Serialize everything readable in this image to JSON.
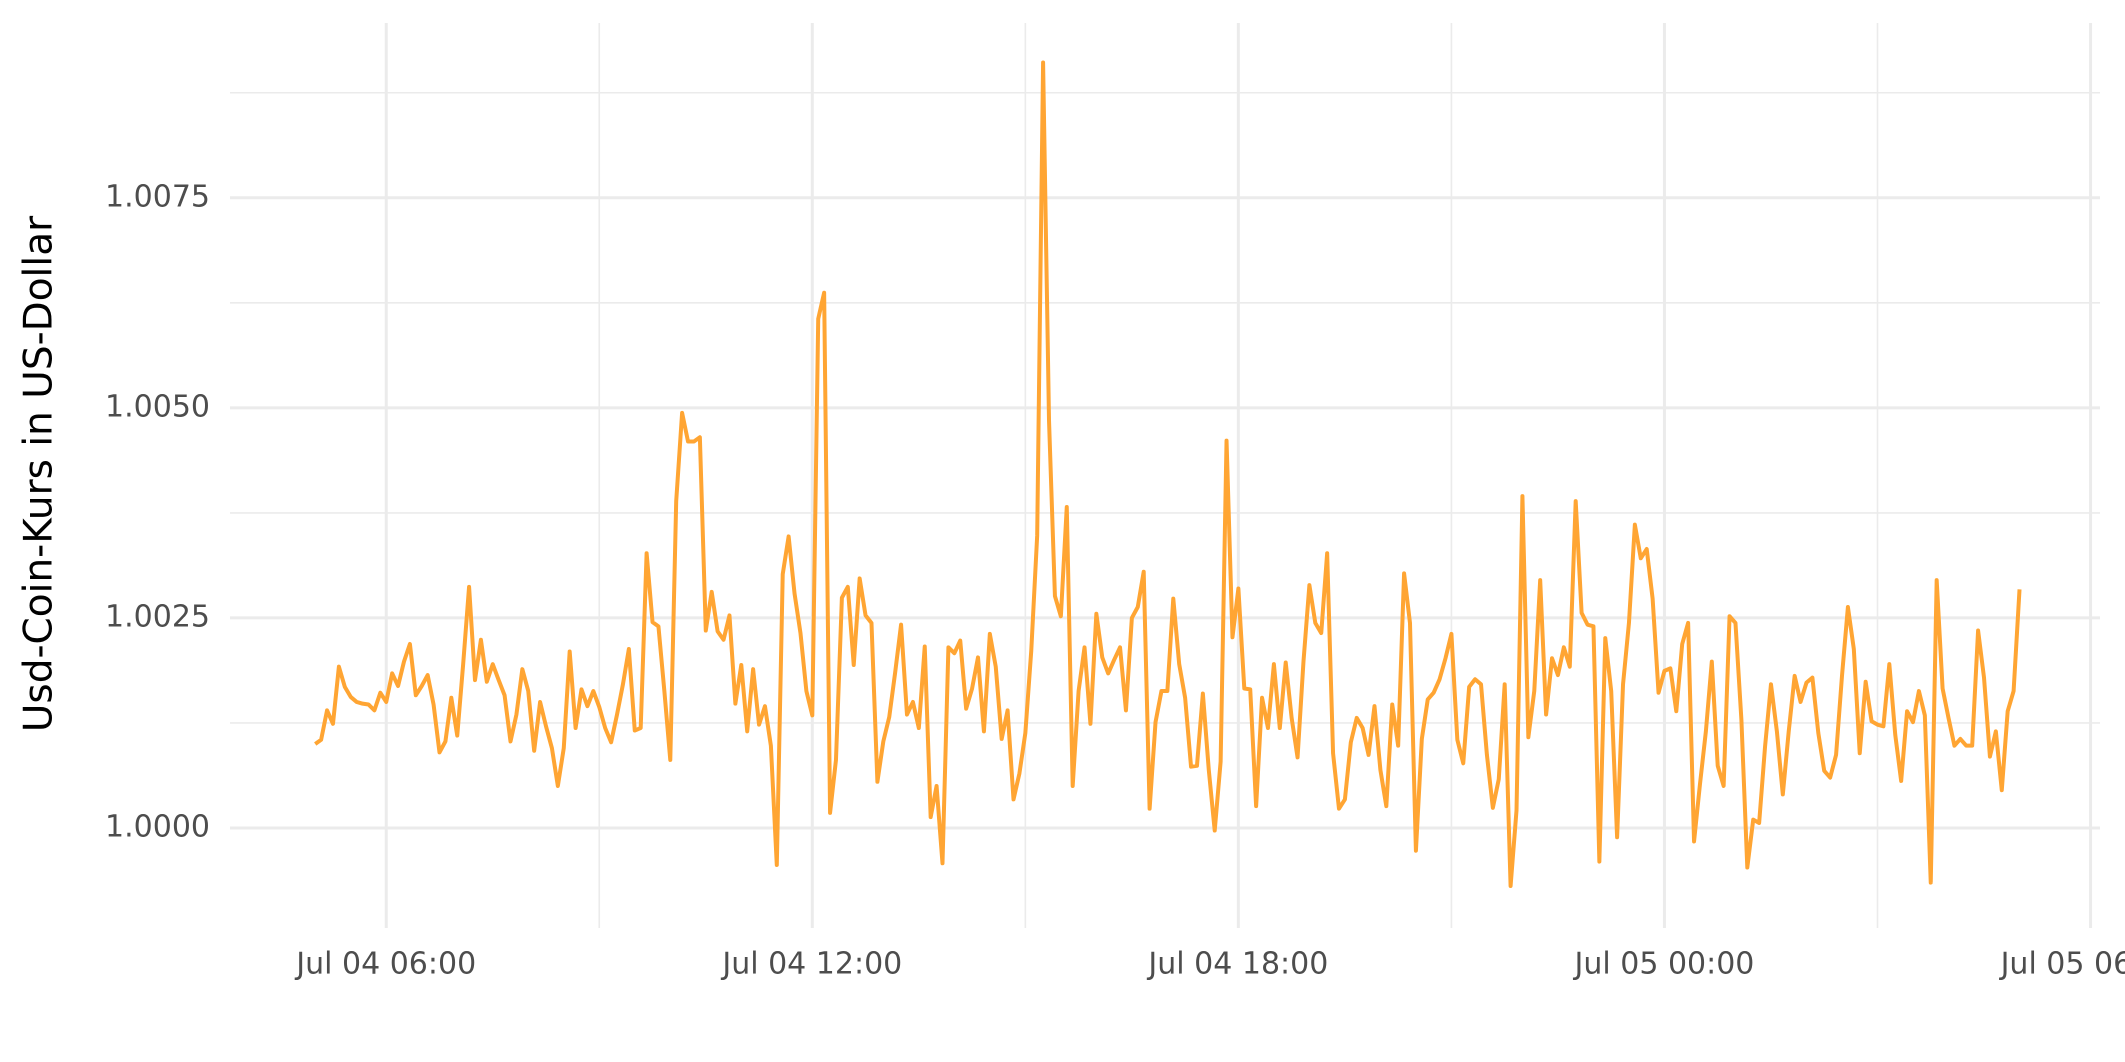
{
  "chart_data": {
    "type": "line",
    "y_label": "Usd-Coin-Kurs in US-Dollar",
    "color": "#ffa533",
    "grid": true,
    "xlim": [
      "Jul 04 03:48",
      "Jul 05 06:08"
    ],
    "xticks": [
      "Jul 04 06:00",
      "Jul 04 12:00",
      "Jul 04 18:00",
      "Jul 05 00:00",
      "Jul 05 06:00"
    ],
    "ylim": [
      0.99881,
      1.00958
    ],
    "yticks": [
      {
        "value": 1.0,
        "label": "1.0000"
      },
      {
        "value": 1.0025,
        "label": "1.0025"
      },
      {
        "value": 1.005,
        "label": "1.0050"
      },
      {
        "value": 1.0075,
        "label": "1.0075"
      }
    ],
    "x": [
      "Jul 04 05:00",
      "Jul 04 05:05",
      "Jul 04 05:10",
      "Jul 04 05:15",
      "Jul 04 05:20",
      "Jul 04 05:25",
      "Jul 04 05:30",
      "Jul 04 05:35",
      "Jul 04 05:40",
      "Jul 04 05:45",
      "Jul 04 05:50",
      "Jul 04 05:55",
      "Jul 04 06:00",
      "Jul 04 06:05",
      "Jul 04 06:10",
      "Jul 04 06:15",
      "Jul 04 06:20",
      "Jul 04 06:25",
      "Jul 04 06:30",
      "Jul 04 06:35",
      "Jul 04 06:40",
      "Jul 04 06:45",
      "Jul 04 06:50",
      "Jul 04 06:55",
      "Jul 04 07:00",
      "Jul 04 07:05",
      "Jul 04 07:10",
      "Jul 04 07:15",
      "Jul 04 07:20",
      "Jul 04 07:25",
      "Jul 04 07:30",
      "Jul 04 07:35",
      "Jul 04 07:40",
      "Jul 04 07:45",
      "Jul 04 07:50",
      "Jul 04 07:55",
      "Jul 04 08:00",
      "Jul 04 08:05",
      "Jul 04 08:10",
      "Jul 04 08:15",
      "Jul 04 08:20",
      "Jul 04 08:25",
      "Jul 04 08:30",
      "Jul 04 08:35",
      "Jul 04 08:40",
      "Jul 04 08:45",
      "Jul 04 08:50",
      "Jul 04 08:55",
      "Jul 04 09:00",
      "Jul 04 09:05",
      "Jul 04 09:10",
      "Jul 04 09:15",
      "Jul 04 09:20",
      "Jul 04 09:25",
      "Jul 04 09:30",
      "Jul 04 09:35",
      "Jul 04 09:40",
      "Jul 04 09:45",
      "Jul 04 09:50",
      "Jul 04 09:55",
      "Jul 04 10:00",
      "Jul 04 10:05",
      "Jul 04 10:10",
      "Jul 04 10:15",
      "Jul 04 10:20",
      "Jul 04 10:25",
      "Jul 04 10:30",
      "Jul 04 10:35",
      "Jul 04 10:40",
      "Jul 04 10:45",
      "Jul 04 10:50",
      "Jul 04 10:55",
      "Jul 04 11:00",
      "Jul 04 11:05",
      "Jul 04 11:10",
      "Jul 04 11:15",
      "Jul 04 11:20",
      "Jul 04 11:25",
      "Jul 04 11:30",
      "Jul 04 11:35",
      "Jul 04 11:40",
      "Jul 04 11:45",
      "Jul 04 11:50",
      "Jul 04 11:55",
      "Jul 04 12:00",
      "Jul 04 12:05",
      "Jul 04 12:10",
      "Jul 04 12:15",
      "Jul 04 12:20",
      "Jul 04 12:25",
      "Jul 04 12:30",
      "Jul 04 12:35",
      "Jul 04 12:40",
      "Jul 04 12:45",
      "Jul 04 12:50",
      "Jul 04 12:55",
      "Jul 04 13:00",
      "Jul 04 13:05",
      "Jul 04 13:10",
      "Jul 04 13:15",
      "Jul 04 13:20",
      "Jul 04 13:25",
      "Jul 04 13:30",
      "Jul 04 13:35",
      "Jul 04 13:40",
      "Jul 04 13:45",
      "Jul 04 13:50",
      "Jul 04 13:55",
      "Jul 04 14:00",
      "Jul 04 14:05",
      "Jul 04 14:10",
      "Jul 04 14:15",
      "Jul 04 14:20",
      "Jul 04 14:25",
      "Jul 04 14:30",
      "Jul 04 14:35",
      "Jul 04 14:40",
      "Jul 04 14:45",
      "Jul 04 14:50",
      "Jul 04 14:55",
      "Jul 04 15:00",
      "Jul 04 15:05",
      "Jul 04 15:10",
      "Jul 04 15:15",
      "Jul 04 15:20",
      "Jul 04 15:25",
      "Jul 04 15:30",
      "Jul 04 15:35",
      "Jul 04 15:40",
      "Jul 04 15:45",
      "Jul 04 15:50",
      "Jul 04 15:55",
      "Jul 04 16:00",
      "Jul 04 16:05",
      "Jul 04 16:10",
      "Jul 04 16:15",
      "Jul 04 16:20",
      "Jul 04 16:25",
      "Jul 04 16:30",
      "Jul 04 16:35",
      "Jul 04 16:40",
      "Jul 04 16:45",
      "Jul 04 16:50",
      "Jul 04 16:55",
      "Jul 04 17:00",
      "Jul 04 17:05",
      "Jul 04 17:10",
      "Jul 04 17:15",
      "Jul 04 17:20",
      "Jul 04 17:25",
      "Jul 04 17:30",
      "Jul 04 17:35",
      "Jul 04 17:40",
      "Jul 04 17:45",
      "Jul 04 17:50",
      "Jul 04 17:55",
      "Jul 04 18:00",
      "Jul 04 18:05",
      "Jul 04 18:10",
      "Jul 04 18:15",
      "Jul 04 18:20",
      "Jul 04 18:25",
      "Jul 04 18:30",
      "Jul 04 18:35",
      "Jul 04 18:40",
      "Jul 04 18:45",
      "Jul 04 18:50",
      "Jul 04 18:55",
      "Jul 04 19:00",
      "Jul 04 19:05",
      "Jul 04 19:10",
      "Jul 04 19:15",
      "Jul 04 19:20",
      "Jul 04 19:25",
      "Jul 04 19:30",
      "Jul 04 19:35",
      "Jul 04 19:40",
      "Jul 04 19:45",
      "Jul 04 19:50",
      "Jul 04 19:55",
      "Jul 04 20:00",
      "Jul 04 20:05",
      "Jul 04 20:10",
      "Jul 04 20:15",
      "Jul 04 20:20",
      "Jul 04 20:25",
      "Jul 04 20:30",
      "Jul 04 20:35",
      "Jul 04 20:40",
      "Jul 04 20:45",
      "Jul 04 20:50",
      "Jul 04 20:55",
      "Jul 04 21:00",
      "Jul 04 21:05",
      "Jul 04 21:10",
      "Jul 04 21:15",
      "Jul 04 21:20",
      "Jul 04 21:25",
      "Jul 04 21:30",
      "Jul 04 21:35",
      "Jul 04 21:40",
      "Jul 04 21:45",
      "Jul 04 21:50",
      "Jul 04 21:55",
      "Jul 04 22:00",
      "Jul 04 22:05",
      "Jul 04 22:10",
      "Jul 04 22:15",
      "Jul 04 22:20",
      "Jul 04 22:25",
      "Jul 04 22:30",
      "Jul 04 22:35",
      "Jul 04 22:40",
      "Jul 04 22:45",
      "Jul 04 22:50",
      "Jul 04 22:55",
      "Jul 04 23:00",
      "Jul 04 23:05",
      "Jul 04 23:10",
      "Jul 04 23:15",
      "Jul 04 23:20",
      "Jul 04 23:25",
      "Jul 04 23:30",
      "Jul 04 23:35",
      "Jul 04 23:40",
      "Jul 04 23:45",
      "Jul 04 23:50",
      "Jul 04 23:55",
      "Jul 05 00:00",
      "Jul 05 00:05",
      "Jul 05 00:10",
      "Jul 05 00:15",
      "Jul 05 00:20",
      "Jul 05 00:25",
      "Jul 05 00:30",
      "Jul 05 00:35",
      "Jul 05 00:40",
      "Jul 05 00:45",
      "Jul 05 00:50",
      "Jul 05 00:55",
      "Jul 05 01:00",
      "Jul 05 01:05",
      "Jul 05 01:10",
      "Jul 05 01:15",
      "Jul 05 01:20",
      "Jul 05 01:25",
      "Jul 05 01:30",
      "Jul 05 01:35",
      "Jul 05 01:40",
      "Jul 05 01:45",
      "Jul 05 01:50",
      "Jul 05 01:55",
      "Jul 05 02:00",
      "Jul 05 02:05",
      "Jul 05 02:10",
      "Jul 05 02:15",
      "Jul 05 02:20",
      "Jul 05 02:25",
      "Jul 05 02:30",
      "Jul 05 02:35",
      "Jul 05 02:40",
      "Jul 05 02:45",
      "Jul 05 02:50",
      "Jul 05 02:55",
      "Jul 05 03:00",
      "Jul 05 03:05",
      "Jul 05 03:10",
      "Jul 05 03:15",
      "Jul 05 03:20",
      "Jul 05 03:25",
      "Jul 05 03:30",
      "Jul 05 03:35",
      "Jul 05 03:40",
      "Jul 05 03:45",
      "Jul 05 03:50",
      "Jul 05 03:55",
      "Jul 05 04:00",
      "Jul 05 04:05",
      "Jul 05 04:10",
      "Jul 05 04:15",
      "Jul 05 04:20",
      "Jul 05 04:25",
      "Jul 05 04:30",
      "Jul 05 04:35",
      "Jul 05 04:40",
      "Jul 05 04:45",
      "Jul 05 04:50",
      "Jul 05 04:55",
      "Jul 05 05:00"
    ],
    "values": [
      1.001,
      1.00105,
      1.0014,
      1.00124,
      1.00192,
      1.00168,
      1.00156,
      1.0015,
      1.00148,
      1.00147,
      1.0014,
      1.00161,
      1.0015,
      1.00184,
      1.00169,
      1.00198,
      1.00219,
      1.00158,
      1.00169,
      1.00182,
      1.00147,
      1.0009,
      1.00103,
      1.00155,
      1.0011,
      1.00195,
      1.00287,
      1.00176,
      1.00224,
      1.00174,
      1.00195,
      1.00176,
      1.00158,
      1.00103,
      1.00135,
      1.00189,
      1.00163,
      1.00092,
      1.0015,
      1.00121,
      1.00095,
      1.0005,
      1.00095,
      1.0021,
      1.00119,
      1.00165,
      1.00145,
      1.00163,
      1.00144,
      1.00119,
      1.00102,
      1.00135,
      1.00171,
      1.00213,
      1.00116,
      1.00119,
      1.00327,
      1.00245,
      1.0024,
      1.00163,
      1.00081,
      1.00389,
      1.00494,
      1.0046,
      1.0046,
      1.00465,
      1.00235,
      1.00281,
      1.00234,
      1.00224,
      1.00253,
      1.00148,
      1.00194,
      1.00115,
      1.00189,
      1.00123,
      1.00145,
      1.00098,
      0.99956,
      1.00302,
      1.00347,
      1.00279,
      1.00232,
      1.00163,
      1.00134,
      1.00606,
      1.00637,
      1.00018,
      1.00081,
      1.00274,
      1.00287,
      1.00194,
      1.00297,
      1.00253,
      1.00244,
      1.00055,
      1.00103,
      1.00132,
      1.00185,
      1.00242,
      1.00135,
      1.0015,
      1.00119,
      1.00216,
      1.00013,
      1.0005,
      0.99958,
      1.00215,
      1.00208,
      1.00223,
      1.00142,
      1.00166,
      1.00203,
      1.00115,
      1.00231,
      1.00192,
      1.00106,
      1.0014,
      1.00034,
      1.00065,
      1.00113,
      1.00211,
      1.00348,
      1.00911,
      1.00485,
      1.00276,
      1.00252,
      1.00382,
      1.0005,
      1.00163,
      1.00215,
      1.00124,
      1.00255,
      1.00203,
      1.00184,
      1.002,
      1.00215,
      1.0014,
      1.0025,
      1.00263,
      1.00305,
      1.00023,
      1.00126,
      1.00163,
      1.00163,
      1.00273,
      1.00195,
      1.00155,
      1.00073,
      1.00074,
      1.0016,
      1.00069,
      0.99997,
      1.00079,
      1.00461,
      1.00227,
      1.00285,
      1.00166,
      1.00165,
      1.00026,
      1.00155,
      1.00119,
      1.00195,
      1.00119,
      1.00197,
      1.00131,
      1.00084,
      1.00198,
      1.00289,
      1.00244,
      1.00232,
      1.00327,
      1.00089,
      1.00023,
      1.00034,
      1.00102,
      1.00131,
      1.00119,
      1.00087,
      1.00145,
      1.00069,
      1.00026,
      1.00147,
      1.00098,
      1.00303,
      1.00244,
      0.99973,
      1.00106,
      1.00153,
      1.00161,
      1.00177,
      1.00202,
      1.00231,
      1.00105,
      1.00077,
      1.00168,
      1.00177,
      1.00171,
      1.00087,
      1.00024,
      1.00058,
      1.00171,
      0.99931,
      1.00021,
      1.00395,
      1.00108,
      1.00163,
      1.00295,
      1.00135,
      1.00202,
      1.00182,
      1.00215,
      1.00192,
      1.00389,
      1.00256,
      1.00242,
      1.0024,
      0.9996,
      1.00226,
      1.00163,
      0.99989,
      1.00171,
      1.00244,
      1.00361,
      1.00321,
      1.00332,
      1.00273,
      1.00161,
      1.00187,
      1.0019,
      1.00139,
      1.00219,
      1.00244,
      0.99984,
      1.00052,
      1.00115,
      1.00198,
      1.00074,
      1.0005,
      1.00252,
      1.00244,
      1.00129,
      0.99953,
      1.0001,
      1.00006,
      1.00097,
      1.00171,
      1.00115,
      1.0004,
      1.00115,
      1.00181,
      1.0015,
      1.00173,
      1.00179,
      1.00113,
      1.00068,
      1.0006,
      1.00087,
      1.00181,
      1.00263,
      1.00213,
      1.00089,
      1.00174,
      1.00127,
      1.00123,
      1.00121,
      1.00195,
      1.00111,
      1.00056,
      1.00139,
      1.00126,
      1.00163,
      1.00134,
      0.99935,
      1.00295,
      1.00166,
      1.00131,
      1.00098,
      1.00106,
      1.00098,
      1.00098,
      1.00235,
      1.00179,
      1.00085,
      1.00115,
      1.00045,
      1.00139,
      1.00163,
      1.00284
    ]
  }
}
